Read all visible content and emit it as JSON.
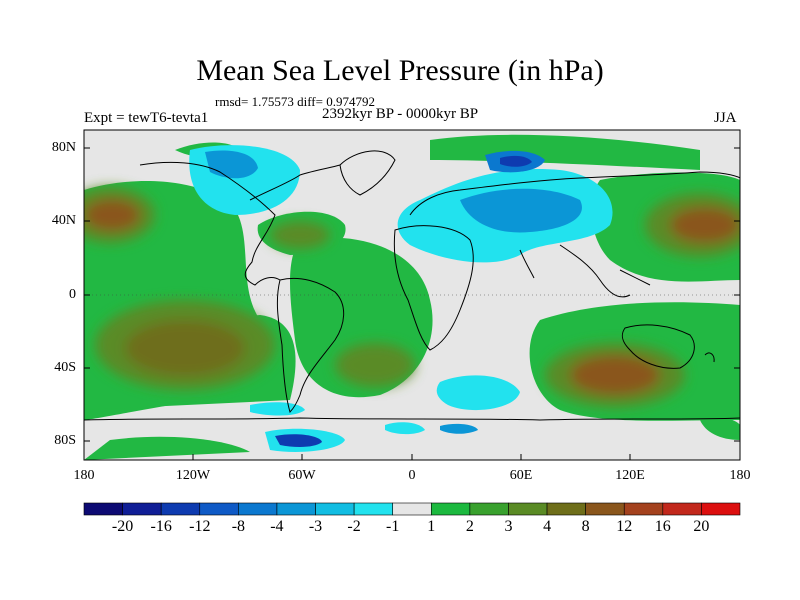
{
  "title": "Mean Sea Level Pressure (in hPa)",
  "stats": "rmsd= 1.75573 diff= 0.974792",
  "experiment": "Expt = tewT6-tevta1",
  "period": "2392kyr BP - 0000kyr BP",
  "season": "JJA",
  "lat_ticks": [
    "80N",
    "40N",
    "0",
    "40S",
    "80S"
  ],
  "lon_ticks": [
    "180",
    "120W",
    "60W",
    "0",
    "60E",
    "120E",
    "180"
  ],
  "colorbar": {
    "labels": [
      "-20",
      "-16",
      "-12",
      "-8",
      "-4",
      "-3",
      "-2",
      "-1",
      "1",
      "2",
      "3",
      "4",
      "8",
      "12",
      "16",
      "20"
    ],
    "colors": [
      "#0d0a73",
      "#101e96",
      "#0e3bb0",
      "#0f5ac6",
      "#0b78cf",
      "#0b96d6",
      "#12bde2",
      "#22e2ee",
      "#e6e6e6",
      "#1cb93f",
      "#39a12e",
      "#5a8b25",
      "#6e6e1a",
      "#8a561c",
      "#a4421e",
      "#c2281c",
      "#dc0f0f"
    ]
  }
}
